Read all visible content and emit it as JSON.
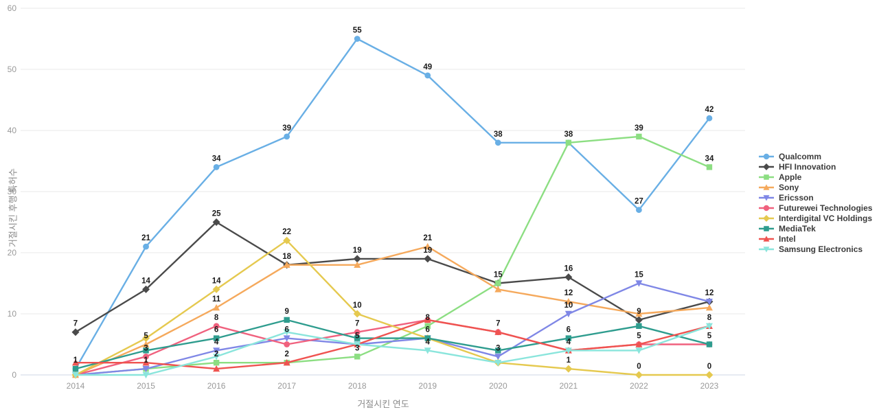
{
  "chart_data": {
    "type": "line",
    "title": "",
    "xlabel": "거절시킨 연도",
    "ylabel": "거절시킨 후행 특허수",
    "x": [
      2014,
      2015,
      2016,
      2017,
      2018,
      2019,
      2020,
      2021,
      2022,
      2023
    ],
    "ylim": [
      0,
      60
    ],
    "yticks": [
      0,
      10,
      20,
      30,
      40,
      50,
      60
    ],
    "grid": true,
    "legend_position": "right",
    "point_labels": true,
    "series": [
      {
        "name": "Qualcomm",
        "color": "#69AFE5",
        "marker": "circle",
        "values": [
          1,
          21,
          34,
          39,
          55,
          49,
          38,
          38,
          27,
          42
        ]
      },
      {
        "name": "HFI Innovation",
        "color": "#4A4A4A",
        "marker": "diamond",
        "values": [
          7,
          14,
          25,
          18,
          19,
          19,
          15,
          16,
          9,
          12
        ]
      },
      {
        "name": "Apple",
        "color": "#8CDE82",
        "marker": "square",
        "values": [
          0,
          1,
          2,
          2,
          3,
          8,
          15,
          38,
          39,
          34
        ]
      },
      {
        "name": "Sony",
        "color": "#F5A95C",
        "marker": "triangle-up",
        "values": [
          0,
          5,
          11,
          18,
          18,
          21,
          14,
          12,
          10,
          11
        ]
      },
      {
        "name": "Ericsson",
        "color": "#7F87E6",
        "marker": "triangle-down",
        "values": [
          0,
          1,
          4,
          6,
          5,
          6,
          3,
          10,
          15,
          12
        ]
      },
      {
        "name": "Futurewei Technologies",
        "color": "#F0617E",
        "marker": "circle",
        "values": [
          0,
          3,
          8,
          5,
          7,
          9,
          7,
          4,
          5,
          5
        ]
      },
      {
        "name": "Interdigital VC Holdings",
        "color": "#E5C94F",
        "marker": "diamond",
        "values": [
          0,
          6,
          14,
          22,
          10,
          6,
          2,
          1,
          0,
          0
        ]
      },
      {
        "name": "MediaTek",
        "color": "#2E9C8E",
        "marker": "square",
        "values": [
          1,
          4,
          6,
          9,
          6,
          6,
          4,
          6,
          8,
          5
        ]
      },
      {
        "name": "Intel",
        "color": "#EF5350",
        "marker": "triangle-up",
        "values": [
          2,
          2,
          1,
          2,
          5,
          9,
          7,
          4,
          5,
          8
        ]
      },
      {
        "name": "Samsung Electronics",
        "color": "#8AE5DC",
        "marker": "triangle-down",
        "values": [
          0,
          0,
          3,
          7,
          5,
          4,
          2,
          4,
          4,
          8
        ]
      }
    ],
    "style": {
      "grid_color": "#e8e8e8",
      "zero_line_color": "#ccd6e4",
      "tick_color": "#999999",
      "label_color": "#1a1a1a",
      "legend_text_color": "#3b3b3b"
    }
  }
}
